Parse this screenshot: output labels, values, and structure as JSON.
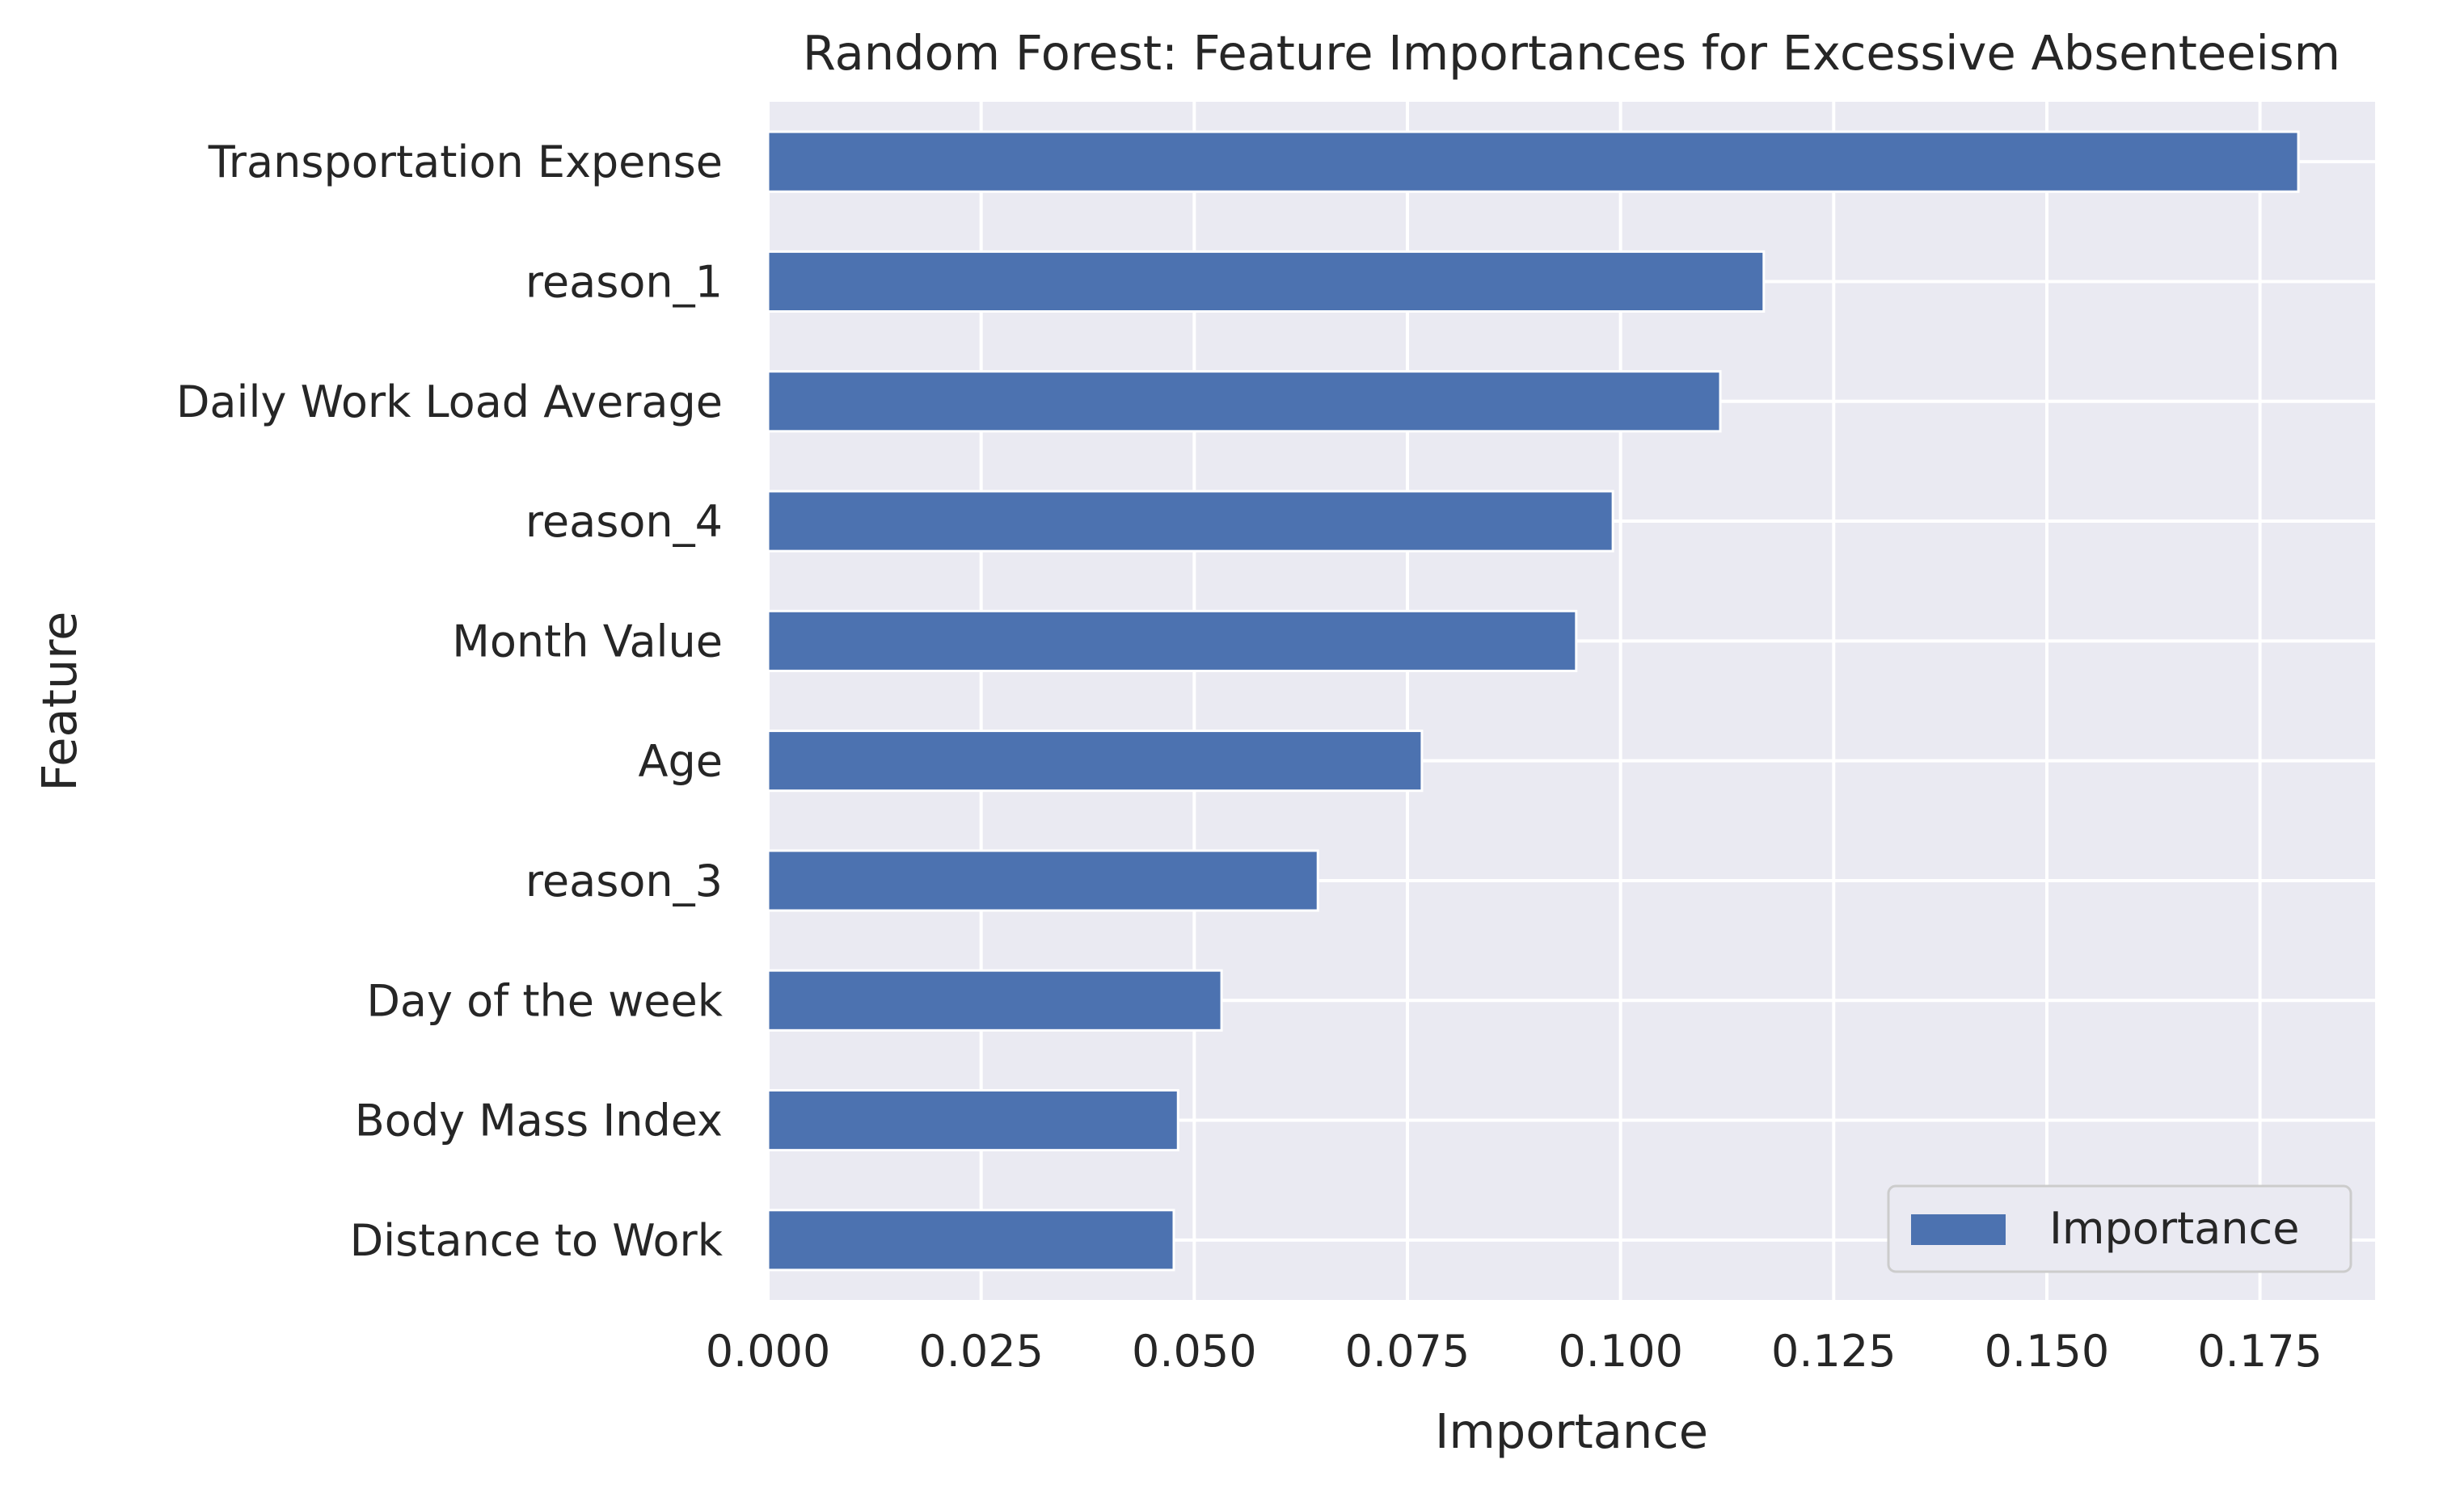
{
  "chart_data": {
    "type": "bar",
    "orientation": "horizontal",
    "title": "Random Forest: Feature Importances for Excessive Absenteeism",
    "xlabel": "Importance",
    "ylabel": "Feature",
    "categories": [
      "Transportation Expense",
      "reason_1",
      "Daily Work Load Average",
      "reason_4",
      "Month Value",
      "Age",
      "reason_3",
      "Day of the week",
      "Body Mass Index",
      "Distance to Work"
    ],
    "series": [
      {
        "name": "Importance",
        "color": "#4c72b0",
        "values": [
          0.1795,
          0.1168,
          0.1117,
          0.0991,
          0.0948,
          0.0767,
          0.0645,
          0.0532,
          0.0481,
          0.0476
        ]
      }
    ],
    "xlim": [
      0,
      0.1885
    ],
    "xticks": [
      "0.000",
      "0.025",
      "0.050",
      "0.075",
      "0.100",
      "0.125",
      "0.150",
      "0.175"
    ],
    "grid": true,
    "legend": "bottom-right",
    "colors": {
      "plot_background": "#eaeaf2",
      "grid": "#ffffff",
      "bar": "#4c72b0",
      "text": "#262626"
    }
  }
}
